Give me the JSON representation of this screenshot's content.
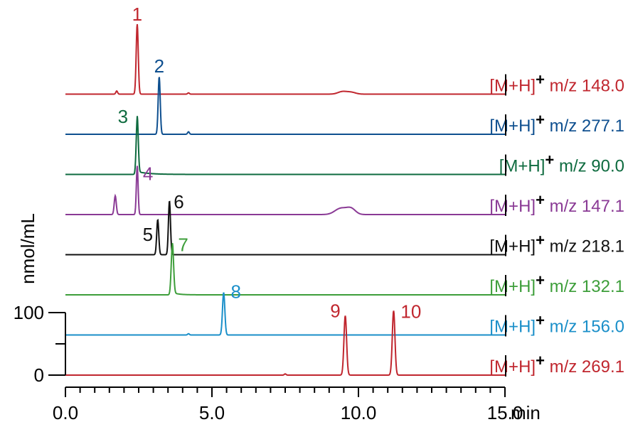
{
  "chart_data": {
    "type": "line",
    "title": "",
    "xlabel": "min",
    "ylabel": "nmol/mL",
    "xlim": [
      0,
      15
    ],
    "ylim": [
      0,
      100
    ],
    "x_ticks": [
      {
        "value": 0,
        "label": "0.0"
      },
      {
        "value": 5,
        "label": "5.0"
      },
      {
        "value": 10,
        "label": "10.0"
      },
      {
        "value": 15,
        "label": "15.0"
      }
    ],
    "y_ticks": [
      {
        "value": 0,
        "label": "0"
      },
      {
        "value": 100,
        "label": "100"
      }
    ],
    "grid": false,
    "series": [
      {
        "name": "[M+H]+ m/z 148.0",
        "prefix": "[M+H]",
        "sup": "+",
        "mz": "m/z 148.0",
        "color": "#c0262e",
        "peaks": [
          {
            "x": 1.75,
            "height": 5,
            "width": 0.03
          },
          {
            "x": 2.45,
            "height": 112,
            "width": 0.035,
            "label": "1"
          },
          {
            "x": 4.2,
            "height": 2,
            "width": 0.03
          },
          {
            "x": 9.45,
            "height": 4,
            "width": 0.15
          },
          {
            "x": 9.75,
            "height": 3,
            "width": 0.15
          }
        ]
      },
      {
        "name": "[M+H]+ m/z 277.1",
        "prefix": "[M+H]",
        "sup": "+",
        "mz": "m/z 277.1",
        "color": "#0e4f8f",
        "peaks": [
          {
            "x": 3.2,
            "height": 92,
            "width": 0.035,
            "label": "2"
          },
          {
            "x": 4.2,
            "height": 4,
            "width": 0.03
          }
        ]
      },
      {
        "name": "[M+H]+ m/z 90.0",
        "prefix": "[M+H]",
        "sup": "+",
        "mz": "m/z 90.0",
        "color": "#0e6b3f",
        "peaks": [
          {
            "x": 2.45,
            "height": 89,
            "width": 0.035,
            "label": "3",
            "tail": 0.4
          }
        ]
      },
      {
        "name": "[M+H]+ m/z 147.1",
        "prefix": "[M+H]",
        "sup": "+",
        "mz": "m/z 147.1",
        "color": "#8a3a95",
        "peaks": [
          {
            "x": 1.7,
            "height": 30,
            "width": 0.035
          },
          {
            "x": 2.45,
            "height": 78,
            "width": 0.03,
            "label": "4"
          },
          {
            "x": 9.4,
            "height": 10,
            "width": 0.2
          },
          {
            "x": 9.75,
            "height": 9,
            "width": 0.15
          }
        ]
      },
      {
        "name": "[M+H]+ m/z 218.1",
        "prefix": "[M+H]",
        "sup": "+",
        "mz": "m/z 218.1",
        "color": "#111111",
        "peaks": [
          {
            "x": 3.15,
            "height": 56,
            "width": 0.035,
            "label": "5"
          },
          {
            "x": 3.55,
            "height": 86,
            "width": 0.035,
            "label": "6"
          }
        ]
      },
      {
        "name": "[M+H]+ m/z 132.1",
        "prefix": "[M+H]",
        "sup": "+",
        "mz": "m/z 132.1",
        "color": "#3d9e3a",
        "peaks": [
          {
            "x": 3.65,
            "height": 79,
            "width": 0.04,
            "label": "7",
            "tail": 0.2
          }
        ]
      },
      {
        "name": "[M+H]+ m/z 156.0",
        "prefix": "[M+H]",
        "sup": "+",
        "mz": "m/z 156.0",
        "color": "#1a8fc9",
        "peaks": [
          {
            "x": 5.4,
            "height": 68,
            "width": 0.04,
            "label": "8"
          },
          {
            "x": 4.2,
            "height": 2,
            "width": 0.03
          }
        ]
      },
      {
        "name": "[M+H]+ m/z 269.1",
        "prefix": "[M+H]",
        "sup": "+",
        "mz": "m/z 269.1",
        "color": "#c0262e",
        "peaks": [
          {
            "x": 9.55,
            "height": 95,
            "width": 0.045,
            "label": "9"
          },
          {
            "x": 11.2,
            "height": 103,
            "width": 0.045,
            "label": "10"
          },
          {
            "x": 7.5,
            "height": 2,
            "width": 0.03
          }
        ]
      }
    ]
  }
}
